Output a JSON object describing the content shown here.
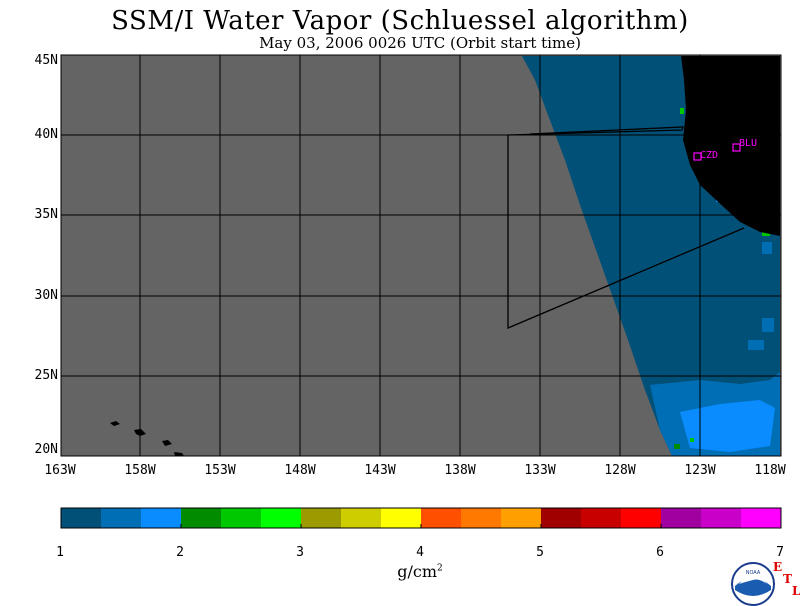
{
  "title": "SSM/I Water Vapor (Schluessel algorithm)",
  "subtitle": "May 03, 2006  0026 UTC  (Orbit start time)",
  "map": {
    "lat_labels": [
      "45N",
      "40N",
      "35N",
      "30N",
      "25N",
      "20N"
    ],
    "lon_labels": [
      "163W",
      "158W",
      "153W",
      "148W",
      "143W",
      "138W",
      "133W",
      "128W",
      "123W",
      "118W"
    ],
    "stations": [
      {
        "label": "CZD",
        "color": "#ff00ff"
      },
      {
        "label": "BLU",
        "color": "#ff00ff"
      }
    ],
    "colors": {
      "no_data": "#646464",
      "land": "#000000",
      "grid": "#000000"
    }
  },
  "colorbar": {
    "unit": "g/cm",
    "unit_exp": "2",
    "tick_labels": [
      "1",
      "2",
      "3",
      "4",
      "5",
      "6",
      "7"
    ],
    "colors": [
      "#005078",
      "#006eb4",
      "#0a8cff",
      "#008c00",
      "#00c800",
      "#00ff00",
      "#9b9b00",
      "#cdcd00",
      "#ffff00",
      "#ff5000",
      "#ff7800",
      "#ffa000",
      "#a00000",
      "#c80000",
      "#ff0000",
      "#a000a0",
      "#c800c8",
      "#ff00ff"
    ]
  },
  "logo": {
    "agency": "NOAA",
    "etl": [
      "E",
      "T",
      "L"
    ]
  }
}
